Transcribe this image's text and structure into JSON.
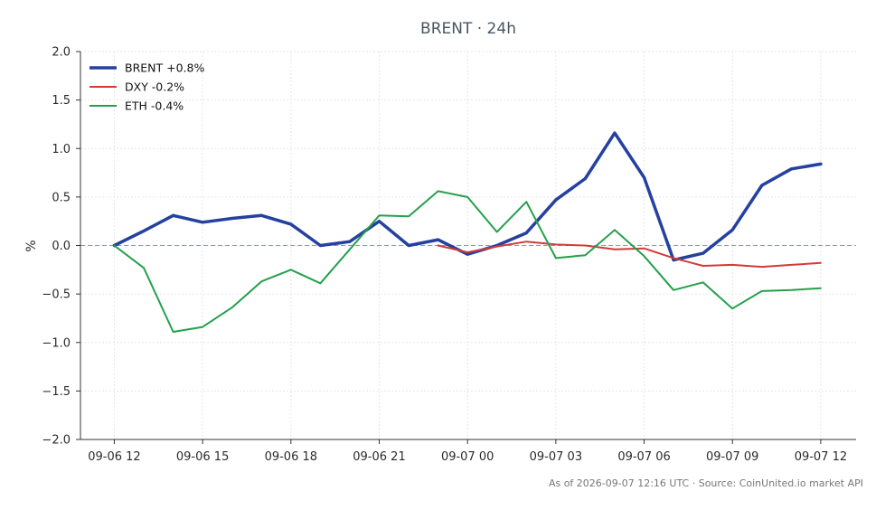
{
  "chart_data": {
    "type": "line",
    "title": "BRENT · 24h",
    "xlabel": "",
    "ylabel": "%",
    "ylim": [
      -2.0,
      2.0
    ],
    "yticks": [
      "2.0",
      "1.5",
      "1.0",
      "0.5",
      "0.0",
      "−0.5",
      "−1.0",
      "−1.5",
      "−2.0"
    ],
    "ytick_values": [
      2.0,
      1.5,
      1.0,
      0.5,
      0.0,
      -0.5,
      -1.0,
      -1.5,
      -2.0
    ],
    "xticks": [
      "09-06 12",
      "09-06 15",
      "09-06 18",
      "09-06 21",
      "09-07 00",
      "09-07 03",
      "09-07 06",
      "09-07 09",
      "09-07 12"
    ],
    "xtick_hours": [
      0,
      3,
      6,
      9,
      12,
      15,
      18,
      21,
      24
    ],
    "xlim_hours": [
      -1.15,
      25.2
    ],
    "zero_line": true,
    "grid": true,
    "legend": "top-left",
    "series": [
      {
        "name": "BRENT +0.8%",
        "color": "#2541a0",
        "width": 3.5,
        "x_hours": [
          0,
          1,
          2,
          3,
          4,
          5,
          6,
          7,
          8,
          9,
          10,
          11,
          12,
          13,
          14,
          15,
          16,
          17,
          18,
          19,
          20,
          21,
          22,
          23,
          24
        ],
        "values": [
          0.0,
          0.15,
          0.31,
          0.24,
          0.28,
          0.31,
          0.22,
          0.0,
          0.04,
          0.25,
          0.0,
          0.06,
          -0.09,
          0.0,
          0.13,
          0.47,
          0.69,
          1.16,
          0.7,
          -0.15,
          -0.08,
          0.16,
          0.62,
          0.79,
          0.84
        ]
      },
      {
        "name": "DXY -0.2%",
        "color": "#d43a36",
        "width": 2,
        "x_hours": [
          11,
          12,
          13,
          14,
          15,
          16,
          17,
          18,
          19,
          20,
          21,
          22,
          23,
          24
        ],
        "values": [
          0.0,
          -0.07,
          -0.01,
          0.04,
          0.01,
          0.0,
          -0.04,
          -0.03,
          -0.13,
          -0.21,
          -0.2,
          -0.22,
          -0.2,
          -0.18
        ]
      },
      {
        "name": "ETH -0.4%",
        "color": "#24a04c",
        "width": 2,
        "x_hours": [
          0,
          1,
          2,
          3,
          4,
          5,
          6,
          7,
          8,
          9,
          10,
          11,
          12,
          13,
          14,
          15,
          16,
          17,
          18,
          19,
          20,
          21,
          22,
          23,
          24
        ],
        "values": [
          0.0,
          -0.23,
          -0.89,
          -0.84,
          -0.64,
          -0.37,
          -0.25,
          -0.39,
          -0.04,
          0.31,
          0.3,
          0.56,
          0.5,
          0.14,
          0.45,
          -0.13,
          -0.1,
          0.16,
          -0.11,
          -0.46,
          -0.38,
          -0.65,
          -0.47,
          -0.46,
          -0.44
        ]
      }
    ]
  },
  "footer": "As of 2026-09-07 12:16 UTC · Source: CoinUnited.io market API"
}
